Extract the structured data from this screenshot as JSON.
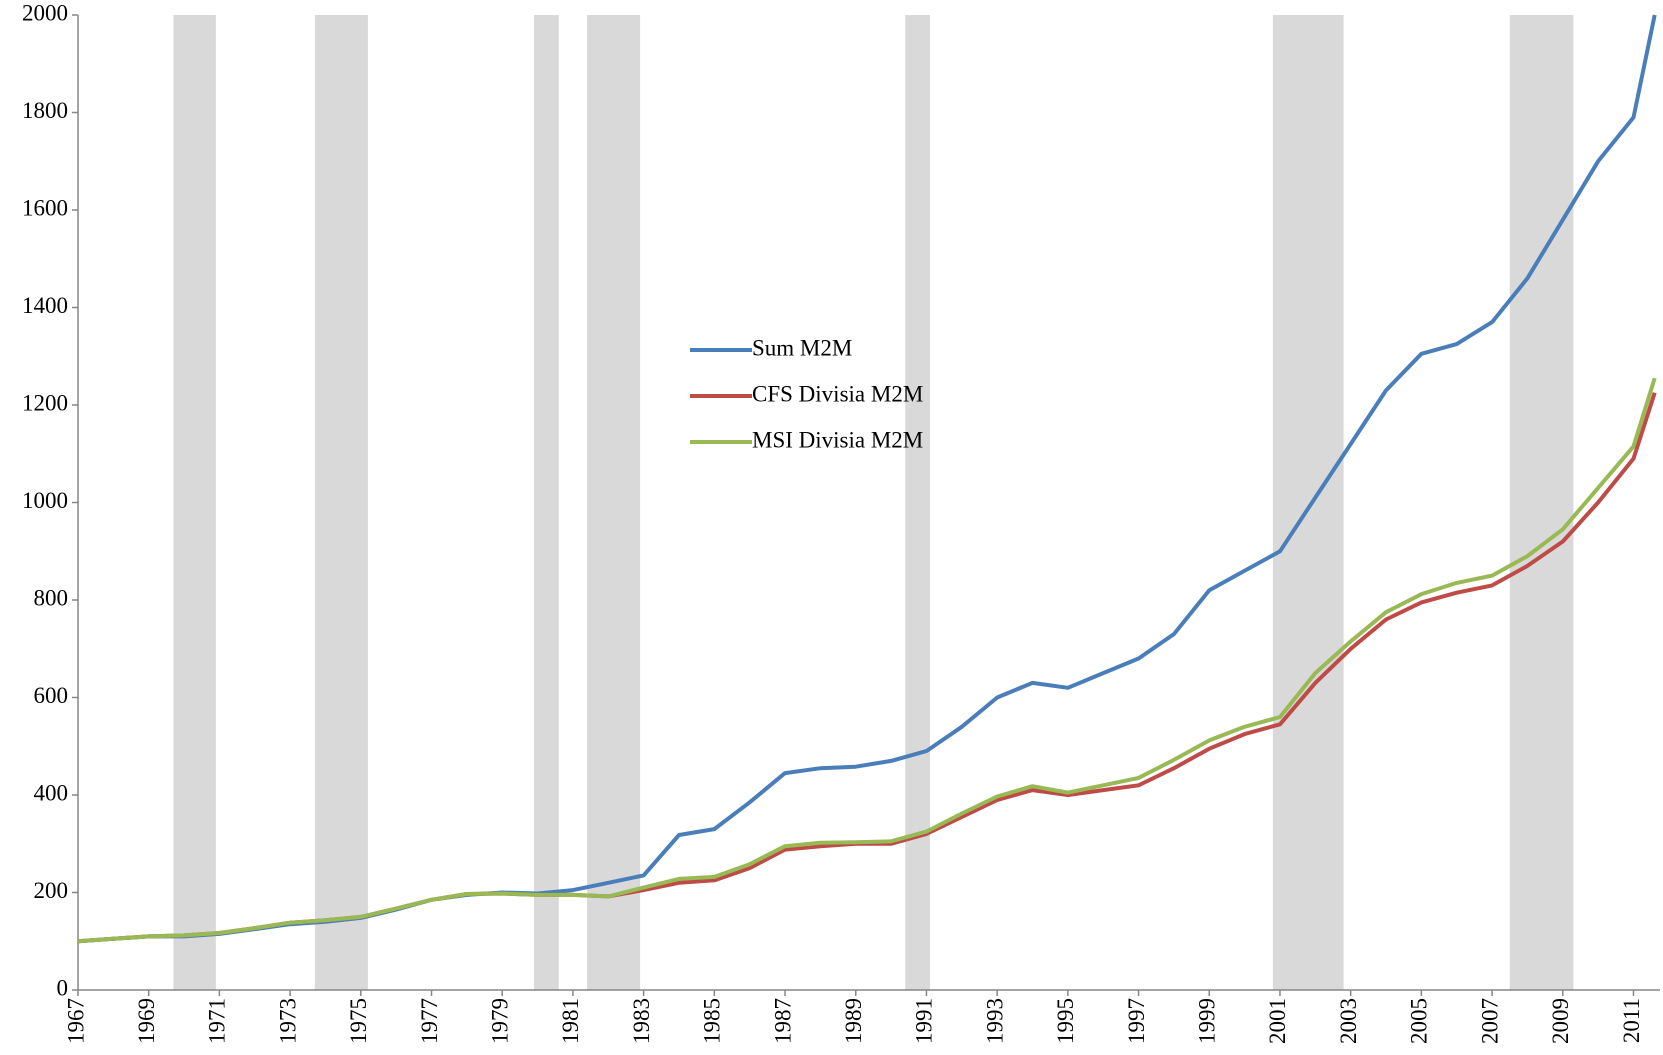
{
  "chart_data": {
    "type": "line",
    "x": [
      1967,
      1968,
      1969,
      1970,
      1971,
      1972,
      1973,
      1974,
      1975,
      1976,
      1977,
      1978,
      1979,
      1980,
      1981,
      1982,
      1983,
      1984,
      1985,
      1986,
      1987,
      1988,
      1989,
      1990,
      1991,
      1992,
      1993,
      1994,
      1995,
      1996,
      1997,
      1998,
      1999,
      2000,
      2001,
      2002,
      2003,
      2004,
      2005,
      2006,
      2007,
      2008,
      2009,
      2010,
      2011,
      2011.6
    ],
    "series": [
      {
        "name": "Sum M2M",
        "color": "#4a7ebb",
        "values": [
          100,
          105,
          110,
          110,
          115,
          125,
          135,
          140,
          148,
          165,
          185,
          195,
          200,
          198,
          205,
          220,
          235,
          318,
          330,
          385,
          445,
          455,
          458,
          470,
          490,
          540,
          600,
          630,
          620,
          650,
          680,
          730,
          820,
          860,
          900,
          1010,
          1120,
          1230,
          1305,
          1325,
          1370,
          1460,
          1580,
          1700,
          1790,
          2000
        ]
      },
      {
        "name": "CFS Divisia M2M",
        "color": "#be4b48",
        "values": [
          100,
          105,
          110,
          112,
          117,
          127,
          138,
          143,
          150,
          167,
          185,
          197,
          198,
          195,
          195,
          192,
          205,
          220,
          225,
          250,
          288,
          295,
          300,
          300,
          320,
          355,
          390,
          410,
          400,
          410,
          420,
          455,
          495,
          525,
          545,
          630,
          700,
          760,
          795,
          815,
          830,
          870,
          920,
          1000,
          1090,
          1225
        ]
      },
      {
        "name": "MSI Divisia M2M",
        "color": "#98b954",
        "values": [
          100,
          105,
          110,
          112,
          117,
          127,
          138,
          143,
          150,
          167,
          185,
          197,
          198,
          195,
          195,
          192,
          210,
          228,
          232,
          258,
          295,
          302,
          303,
          305,
          325,
          362,
          397,
          418,
          405,
          420,
          435,
          472,
          512,
          540,
          560,
          650,
          715,
          775,
          812,
          835,
          850,
          890,
          945,
          1030,
          1115,
          1255
        ]
      }
    ],
    "recessions": [
      [
        1969.7,
        1970.9
      ],
      [
        1973.7,
        1975.2
      ],
      [
        1979.9,
        1980.6
      ],
      [
        1981.4,
        1982.9
      ],
      [
        1990.4,
        1991.1
      ],
      [
        2000.8,
        2002.8
      ],
      [
        2007.5,
        2009.3
      ]
    ],
    "xlim": [
      1967,
      2011.75
    ],
    "xticks": [
      1967,
      1969,
      1971,
      1973,
      1975,
      1977,
      1979,
      1981,
      1983,
      1985,
      1987,
      1989,
      1991,
      1993,
      1995,
      1997,
      1999,
      2001,
      2003,
      2005,
      2007,
      2009,
      2011
    ],
    "ylim": [
      0,
      2000
    ],
    "yticks": [
      0,
      200,
      400,
      600,
      800,
      1000,
      1200,
      1400,
      1600,
      1800,
      2000
    ]
  }
}
